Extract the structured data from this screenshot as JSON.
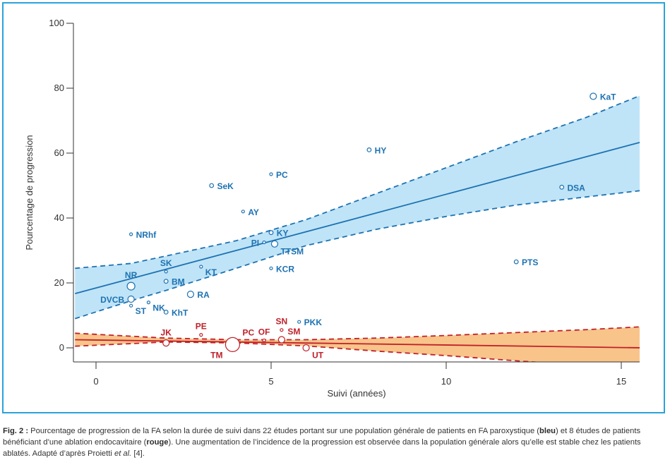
{
  "chart_data": {
    "type": "scatter",
    "xlabel": "Suivi (années)",
    "ylabel": "Pourcentage de progression",
    "xlim": [
      -0.6,
      15.6
    ],
    "ylim": [
      -4.5,
      100
    ],
    "xticks": [
      0,
      5,
      10,
      15
    ],
    "yticks": [
      0,
      20,
      40,
      60,
      80,
      100
    ],
    "grid": false,
    "colors": {
      "blue": "#1d72b2",
      "blue_band": "#bfe4f7",
      "red": "#c0202a",
      "orange_band": "#f8c48a",
      "frame": "#2aa3d8",
      "axis": "#333333"
    },
    "series": [
      {
        "name": "FA paroxystique (population générale)",
        "color": "#1d72b2",
        "points": [
          {
            "label": "KaT",
            "x": 14.2,
            "y": 77.5,
            "size": "m",
            "lp": "r"
          },
          {
            "label": "HY",
            "x": 7.8,
            "y": 61,
            "size": "s",
            "lp": "r"
          },
          {
            "label": "PC",
            "x": 5.0,
            "y": 53.5,
            "size": "xs",
            "lp": "r"
          },
          {
            "label": "SeK",
            "x": 3.3,
            "y": 50,
            "size": "s",
            "lp": "r"
          },
          {
            "label": "DSA",
            "x": 13.3,
            "y": 49.5,
            "size": "s",
            "lp": "r"
          },
          {
            "label": "AY",
            "x": 4.2,
            "y": 42,
            "size": "xs",
            "lp": "r"
          },
          {
            "label": "NRhf",
            "x": 1.0,
            "y": 35,
            "size": "xs",
            "lp": "r"
          },
          {
            "label": "KY",
            "x": 5.0,
            "y": 35.5,
            "size": "s",
            "lp": "r"
          },
          {
            "label": "PI",
            "x": 4.8,
            "y": 32.5,
            "size": "xs",
            "lp": "l"
          },
          {
            "label": "TTSM",
            "x": 5.1,
            "y": 32,
            "size": "m",
            "lp": "br"
          },
          {
            "label": "PTS",
            "x": 12.0,
            "y": 26.5,
            "size": "s",
            "lp": "r"
          },
          {
            "label": "SK",
            "x": 2.0,
            "y": 23.5,
            "size": "xs",
            "lp": "t"
          },
          {
            "label": "KT",
            "x": 3.0,
            "y": 25,
            "size": "xs",
            "lp": "br"
          },
          {
            "label": "KCR",
            "x": 5.0,
            "y": 24.5,
            "size": "xs",
            "lp": "r"
          },
          {
            "label": "NR",
            "x": 1.0,
            "y": 19,
            "size": "l",
            "lp": "t"
          },
          {
            "label": "BM",
            "x": 2.0,
            "y": 20.5,
            "size": "s",
            "lp": "r"
          },
          {
            "label": "RA",
            "x": 2.7,
            "y": 16.5,
            "size": "m",
            "lp": "r"
          },
          {
            "label": "DVCB",
            "x": 1.0,
            "y": 15,
            "size": "m",
            "lp": "l"
          },
          {
            "label": "NK",
            "x": 1.5,
            "y": 14,
            "size": "xs",
            "lp": "br"
          },
          {
            "label": "ST",
            "x": 1.0,
            "y": 13,
            "size": "xs",
            "lp": "br"
          },
          {
            "label": "KhT",
            "x": 2.0,
            "y": 11,
            "size": "s",
            "lp": "r"
          },
          {
            "label": "PKK",
            "x": 5.8,
            "y": 8,
            "size": "xs",
            "lp": "r"
          }
        ],
        "regression": {
          "x0": -0.6,
          "y0": 16.7,
          "x1": 15.6,
          "y1": 63.5
        },
        "ci_upper": [
          [
            -0.6,
            24.5
          ],
          [
            1,
            26
          ],
          [
            2,
            28.3
          ],
          [
            4,
            33
          ],
          [
            6,
            39.5
          ],
          [
            8,
            47.5
          ],
          [
            10,
            55.5
          ],
          [
            12,
            63.5
          ],
          [
            14,
            71
          ],
          [
            15.6,
            78
          ]
        ],
        "ci_lower": [
          [
            -0.6,
            9
          ],
          [
            1,
            14.5
          ],
          [
            2,
            17.7
          ],
          [
            4,
            24.5
          ],
          [
            6,
            31.5
          ],
          [
            8,
            36.5
          ],
          [
            10,
            40.5
          ],
          [
            12,
            44
          ],
          [
            14,
            46.5
          ],
          [
            15.6,
            48.5
          ]
        ]
      },
      {
        "name": "Ablation endocavitaire",
        "color": "#c0202a",
        "points": [
          {
            "label": "JK",
            "x": 2.0,
            "y": 1.5,
            "size": "m",
            "lp": "t"
          },
          {
            "label": "PE",
            "x": 3.0,
            "y": 4,
            "size": "xs",
            "lp": "t"
          },
          {
            "label": "PC",
            "x": 3.9,
            "y": 1,
            "size": "xl",
            "lp": "tr"
          },
          {
            "label": "OF",
            "x": 4.8,
            "y": 2.3,
            "size": "xs",
            "lp": "t"
          },
          {
            "label": "SN",
            "x": 5.3,
            "y": 5.5,
            "size": "xs",
            "lp": "t"
          },
          {
            "label": "SM",
            "x": 5.3,
            "y": 2.5,
            "size": "m",
            "lp": "tr"
          },
          {
            "label": "TM",
            "x": 3.9,
            "y": 1,
            "size": "xl",
            "lp": "bl"
          },
          {
            "label": "UT",
            "x": 6.0,
            "y": 0,
            "size": "m",
            "lp": "br"
          }
        ],
        "regression": {
          "x0": -0.6,
          "y0": 2.5,
          "x1": 15.6,
          "y1": 0
        },
        "ci_upper": [
          [
            -0.6,
            4.5
          ],
          [
            2,
            3
          ],
          [
            4,
            2.5
          ],
          [
            6,
            2.5
          ],
          [
            8,
            3
          ],
          [
            10,
            3.8
          ],
          [
            12,
            4.7
          ],
          [
            14,
            5.6
          ],
          [
            15.6,
            6.5
          ]
        ],
        "ci_lower": [
          [
            -0.6,
            0.5
          ],
          [
            2,
            1.8
          ],
          [
            4,
            1.5
          ],
          [
            6,
            0.6
          ],
          [
            8,
            -1
          ],
          [
            10,
            -2.4
          ],
          [
            12,
            -4
          ],
          [
            14,
            -5.5
          ],
          [
            15.6,
            -6.8
          ]
        ]
      }
    ]
  },
  "caption": {
    "fig_label": "Fig. 2 :",
    "part1": " Pourcentage de progression de la FA selon la durée de suivi dans 22 études portant sur une population générale de patients en FA paroxystique (",
    "bleu": "bleu",
    "part2": ") et 8 études de patients bénéficiant d’une ablation endocavitaire (",
    "rouge": "rouge",
    "part3": "). Une augmentation de l’incidence de la progression est observée dans la population générale alors qu’elle est stable chez les patients ablatés. Adapté d’après Proietti ",
    "etal": "et al.",
    "part4": " [4]."
  }
}
